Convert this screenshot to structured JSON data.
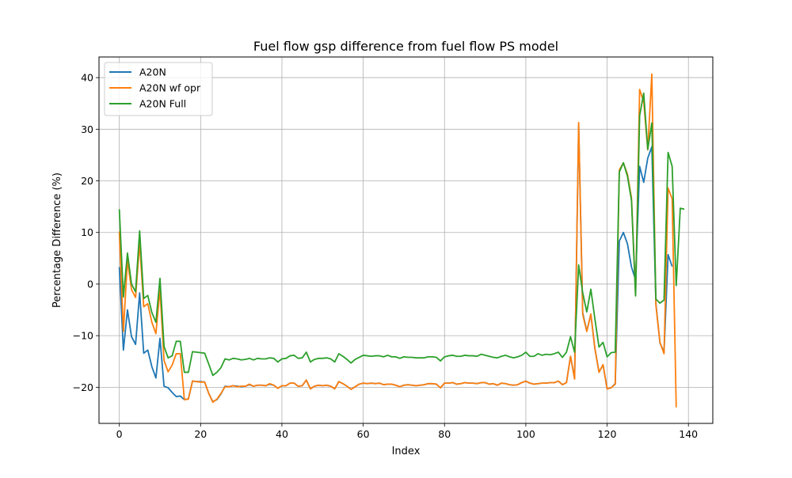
{
  "chart_data": {
    "type": "line",
    "title": "Fuel flow gsp difference from fuel flow PS model",
    "xlabel": "Index",
    "ylabel": "Percentage Difference (%)",
    "xlim": [
      -5,
      146
    ],
    "ylim": [
      -27,
      44
    ],
    "xticks": [
      0,
      20,
      40,
      60,
      80,
      100,
      120,
      140
    ],
    "yticks": [
      -20,
      -10,
      0,
      10,
      20,
      30,
      40
    ],
    "grid": true,
    "legend_position": "upper-left",
    "series": [
      {
        "name": "A20N",
        "color": "#1f77b4",
        "x": [
          0,
          1,
          2,
          3,
          4,
          5,
          6,
          7,
          8,
          9,
          10,
          11,
          12,
          13,
          14,
          15,
          16,
          17,
          18,
          19,
          20,
          21,
          22,
          23,
          24,
          25,
          26,
          27,
          28,
          29,
          30,
          31,
          32,
          33,
          34,
          35,
          36,
          37,
          38,
          39,
          40,
          41,
          42,
          43,
          44,
          45,
          46,
          47,
          48,
          49,
          50,
          51,
          52,
          53,
          54,
          55,
          56,
          57,
          58,
          59,
          60,
          61,
          62,
          63,
          64,
          65,
          66,
          67,
          68,
          69,
          70,
          71,
          72,
          73,
          74,
          75,
          76,
          77,
          78,
          79,
          80,
          81,
          82,
          83,
          84,
          85,
          86,
          87,
          88,
          89,
          90,
          91,
          92,
          93,
          94,
          95,
          96,
          97,
          98,
          99,
          100,
          101,
          102,
          103,
          104,
          105,
          106,
          107,
          108,
          109,
          110,
          111,
          112,
          113,
          114,
          115,
          116,
          117,
          118,
          119,
          120,
          121,
          122,
          123,
          124,
          125,
          126,
          127,
          128,
          129,
          130,
          131,
          132,
          133,
          134,
          135,
          136
        ],
        "y": [
          3.3,
          -12.8,
          -5,
          -10.2,
          -11.7,
          -1.7,
          -13.4,
          -12.8,
          -16,
          -18.2,
          -10.5,
          -19.8,
          -20.1,
          -21,
          -21.8,
          -21.7,
          -22.4,
          -22.2,
          -18.8,
          -18.9,
          -18.9,
          -19,
          -21.2,
          -22.8,
          -22.4,
          -21.3,
          -19.8,
          -19.9,
          -19.7,
          -19.8,
          -19.9,
          -19.8,
          -19.5,
          -19.8,
          -19.6,
          -19.6,
          -19.7,
          -19.4,
          -19.6,
          -20.2,
          -19.7,
          -19.7,
          -19.2,
          -19.2,
          -19.8,
          -19.7,
          -18.6,
          -20.3,
          -19.8,
          -19.6,
          -19.7,
          -19.6,
          -19.8,
          -20.3,
          -18.9,
          -19.3,
          -19.8,
          -20.4,
          -19.9,
          -19.4,
          -19.2,
          -19.3,
          -19.2,
          -19.3,
          -19.2,
          -19.5,
          -19.4,
          -19.4,
          -19.6,
          -19.9,
          -19.6,
          -19.5,
          -19.6,
          -19.7,
          -19.6,
          -19.5,
          -19.3,
          -19.3,
          -19.4,
          -20.1,
          -19.2,
          -19.2,
          -19.1,
          -19.4,
          -19.3,
          -19.1,
          -19.2,
          -19.2,
          -19.3,
          -19.1,
          -19.1,
          -19.4,
          -19.3,
          -19.6,
          -19.2,
          -19.3,
          -19.5,
          -19.6,
          -19.5,
          -19.1,
          -18.8,
          -19.2,
          -19.4,
          -19.3,
          -19.2,
          -19.2,
          -19.1,
          -19.1,
          -18.8,
          -19.5,
          -19.1,
          -14,
          -18.3,
          30.7,
          -5.6,
          -9.1,
          -5.9,
          -12.5,
          -17,
          -15.7,
          -20.3,
          -20.1,
          -19.3,
          8.3,
          10,
          7.8,
          3.3,
          0.8,
          22.8,
          19.7,
          24.4,
          26.6,
          -3.8,
          -11.4,
          -13.2,
          5.7,
          3.4
        ]
      },
      {
        "name": "A20N wf opr",
        "color": "#ff7f0e",
        "x": [
          0,
          1,
          2,
          3,
          4,
          5,
          6,
          7,
          8,
          9,
          10,
          11,
          12,
          13,
          14,
          15,
          16,
          17,
          18,
          19,
          20,
          21,
          22,
          23,
          24,
          25,
          26,
          27,
          28,
          29,
          30,
          31,
          32,
          33,
          34,
          35,
          36,
          37,
          38,
          39,
          40,
          41,
          42,
          43,
          44,
          45,
          46,
          47,
          48,
          49,
          50,
          51,
          52,
          53,
          54,
          55,
          56,
          57,
          58,
          59,
          60,
          61,
          62,
          63,
          64,
          65,
          66,
          67,
          68,
          69,
          70,
          71,
          72,
          73,
          74,
          75,
          76,
          77,
          78,
          79,
          80,
          81,
          82,
          83,
          84,
          85,
          86,
          87,
          88,
          89,
          90,
          91,
          92,
          93,
          94,
          95,
          96,
          97,
          98,
          99,
          100,
          101,
          102,
          103,
          104,
          105,
          106,
          107,
          108,
          109,
          110,
          111,
          112,
          113,
          114,
          115,
          116,
          117,
          118,
          119,
          120,
          121,
          122,
          123,
          124,
          125,
          126,
          127,
          128,
          129,
          130,
          131,
          132,
          133,
          134,
          135,
          136,
          137
        ],
        "y": [
          10.2,
          -9.2,
          4.6,
          -1.1,
          -2.6,
          8,
          -4.4,
          -3.8,
          -7.4,
          -9.6,
          -1.1,
          -14.8,
          -17,
          -15.7,
          -13.5,
          -13.5,
          -22.4,
          -22.3,
          -18.8,
          -18.9,
          -19,
          -19,
          -21.2,
          -22.9,
          -22.3,
          -21.2,
          -19.9,
          -19.9,
          -19.7,
          -19.9,
          -19.8,
          -19.8,
          -19.4,
          -19.8,
          -19.6,
          -19.6,
          -19.7,
          -19.3,
          -19.6,
          -20.2,
          -19.7,
          -19.7,
          -19.2,
          -19.2,
          -19.8,
          -19.7,
          -18.6,
          -20.3,
          -19.8,
          -19.6,
          -19.7,
          -19.6,
          -19.8,
          -20.3,
          -18.9,
          -19.3,
          -19.8,
          -20.4,
          -19.9,
          -19.4,
          -19.2,
          -19.3,
          -19.2,
          -19.3,
          -19.2,
          -19.5,
          -19.4,
          -19.4,
          -19.6,
          -19.9,
          -19.6,
          -19.5,
          -19.6,
          -19.7,
          -19.6,
          -19.5,
          -19.3,
          -19.3,
          -19.4,
          -20.1,
          -19.2,
          -19.2,
          -19.1,
          -19.4,
          -19.3,
          -19.1,
          -19.2,
          -19.2,
          -19.3,
          -19.1,
          -19.1,
          -19.4,
          -19.3,
          -19.6,
          -19.2,
          -19.3,
          -19.5,
          -19.6,
          -19.5,
          -19.1,
          -18.8,
          -19.2,
          -19.4,
          -19.3,
          -19.2,
          -19.2,
          -19.1,
          -19.1,
          -18.8,
          -19.5,
          -19.1,
          -14,
          -18.4,
          31.3,
          -5.9,
          -9.2,
          -5.8,
          -12.5,
          -17.1,
          -15.6,
          -20.3,
          -20.1,
          -19.4,
          22.1,
          23.5,
          21.3,
          16.7,
          -2.2,
          37.7,
          35.3,
          26,
          40.7,
          -4.1,
          -11.3,
          -13.5,
          18.6,
          16.5,
          -23.9
        ]
      },
      {
        "name": "A20N Full",
        "color": "#2ca02c",
        "x": [
          0,
          1,
          2,
          3,
          4,
          5,
          6,
          7,
          8,
          9,
          10,
          11,
          12,
          13,
          14,
          15,
          16,
          17,
          18,
          19,
          20,
          21,
          22,
          23,
          24,
          25,
          26,
          27,
          28,
          29,
          30,
          31,
          32,
          33,
          34,
          35,
          36,
          37,
          38,
          39,
          40,
          41,
          42,
          43,
          44,
          45,
          46,
          47,
          48,
          49,
          50,
          51,
          52,
          53,
          54,
          55,
          56,
          57,
          58,
          59,
          60,
          61,
          62,
          63,
          64,
          65,
          66,
          67,
          68,
          69,
          70,
          71,
          72,
          73,
          74,
          75,
          76,
          77,
          78,
          79,
          80,
          81,
          82,
          83,
          84,
          85,
          86,
          87,
          88,
          89,
          90,
          91,
          92,
          93,
          94,
          95,
          96,
          97,
          98,
          99,
          100,
          101,
          102,
          103,
          104,
          105,
          106,
          107,
          108,
          109,
          110,
          111,
          112,
          113,
          114,
          115,
          116,
          117,
          118,
          119,
          120,
          121,
          122,
          123,
          124,
          125,
          126,
          127,
          128,
          129,
          130,
          131,
          132,
          133,
          134,
          135,
          136,
          137,
          138,
          139
        ],
        "y": [
          14.5,
          -2.5,
          6,
          0,
          -1.5,
          10.3,
          -2.8,
          -2.2,
          -5.5,
          -7.4,
          1.1,
          -12.1,
          -14.3,
          -13.9,
          -11.1,
          -11.1,
          -17.1,
          -17.1,
          -13.1,
          -13.2,
          -13.3,
          -13.4,
          -15.5,
          -17.7,
          -17.1,
          -16.2,
          -14.5,
          -14.7,
          -14.4,
          -14.5,
          -14.7,
          -14.6,
          -14.4,
          -14.7,
          -14.4,
          -14.5,
          -14.5,
          -14.3,
          -14.4,
          -15.1,
          -14.5,
          -14.4,
          -13.9,
          -13.8,
          -14.4,
          -14.3,
          -13.2,
          -15.1,
          -14.6,
          -14.4,
          -14.4,
          -14.3,
          -14.5,
          -15.1,
          -13.5,
          -14,
          -14.6,
          -15.3,
          -14.6,
          -14.2,
          -13.8,
          -13.9,
          -14,
          -13.9,
          -13.9,
          -14.1,
          -13.8,
          -14.1,
          -14.1,
          -14.4,
          -14.1,
          -14.2,
          -14.2,
          -14.3,
          -14.3,
          -14.3,
          -14.1,
          -14.1,
          -14.2,
          -14.9,
          -14.1,
          -13.9,
          -13.8,
          -14,
          -14,
          -13.8,
          -13.9,
          -13.9,
          -14,
          -13.6,
          -13.8,
          -14,
          -14.2,
          -14.3,
          -14,
          -13.8,
          -14.1,
          -14.3,
          -14.1,
          -13.8,
          -13.2,
          -14,
          -14,
          -13.5,
          -13.8,
          -13.6,
          -13.7,
          -13.5,
          -13.2,
          -14.2,
          -13.2,
          -10.2,
          -13.2,
          3.7,
          -1.7,
          -5.4,
          -1,
          -6.8,
          -12.2,
          -11.3,
          -14.1,
          -13.3,
          -13.2,
          21.7,
          23.5,
          20.9,
          16.2,
          -2.3,
          32.6,
          37,
          26.1,
          31.2,
          -2.9,
          -3.7,
          -3.1,
          25.5,
          22.8,
          -0.3,
          14.7,
          14.5
        ]
      }
    ]
  }
}
